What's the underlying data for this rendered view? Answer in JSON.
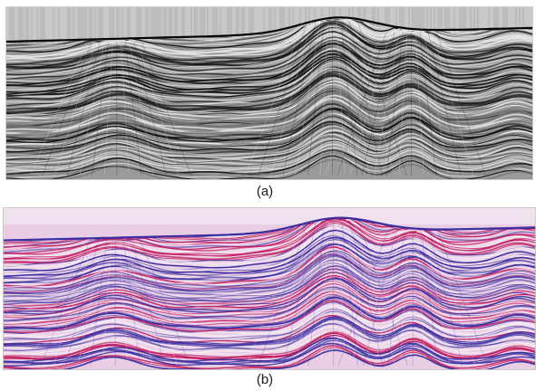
{
  "figures": [
    {
      "id": "a",
      "caption": "(a)",
      "colormap": "grayscale",
      "colors": {
        "background": "#9a9a9a",
        "trace_dark": "#111111",
        "trace_light": "#e6e6e6",
        "sky": "#c8c8c8"
      }
    },
    {
      "id": "b",
      "caption": "(b)",
      "colormap": "red-blue-white",
      "colors": {
        "background": "#e8cde4",
        "trace_red": "#c2185b",
        "trace_blue": "#3a2fa0",
        "trace_light": "#f6e9f3"
      }
    }
  ]
}
